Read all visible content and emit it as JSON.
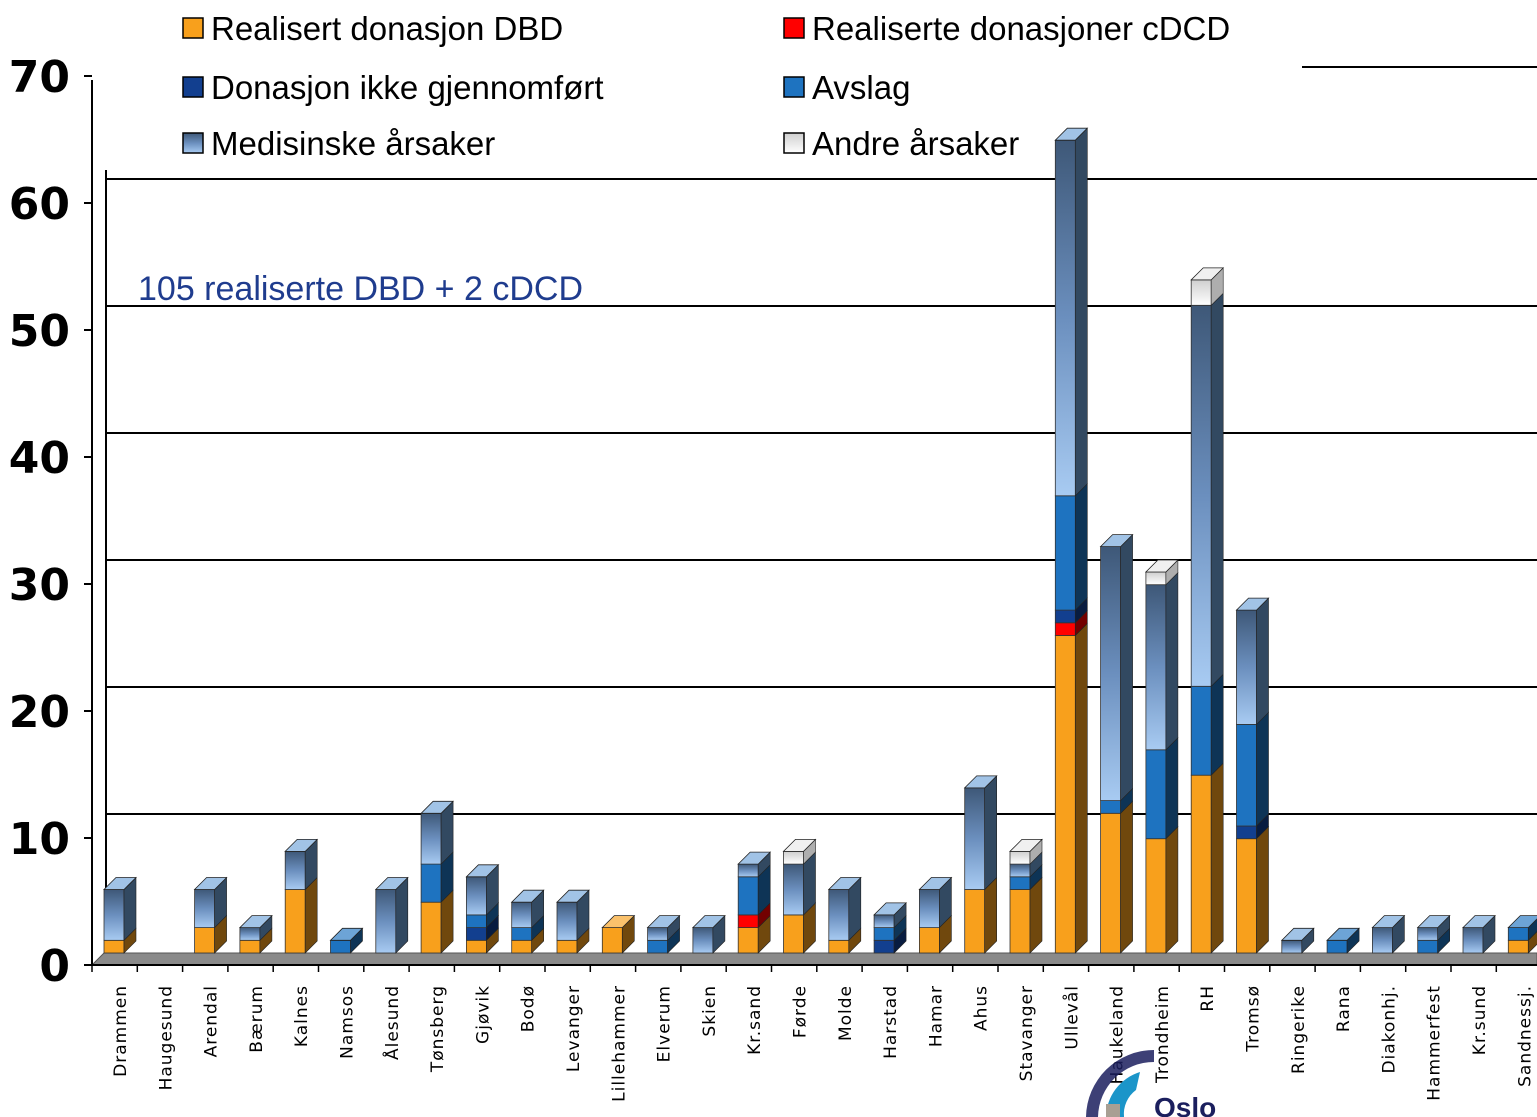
{
  "chart_data": {
    "type": "bar",
    "stacked": true,
    "three_d": true,
    "title": "",
    "xlabel": "",
    "ylabel": "",
    "ylim": [
      0,
      70
    ],
    "yticks": [
      "0",
      "10",
      "20",
      "30",
      "40",
      "50",
      "60",
      "70"
    ],
    "grid": true,
    "legend_position": "top",
    "categories": [
      "Drammen",
      "Haugesund",
      "Arendal",
      "Bærum",
      "Kalnes",
      "Namsos",
      "Ålesund",
      "Tønsberg",
      "Gjøvik",
      "Bodø",
      "Levanger",
      "Lillehammer",
      "Elverum",
      "Skien",
      "Kr.sand",
      "Førde",
      "Molde",
      "Harstad",
      "Hamar",
      "Ahus",
      "Stavanger",
      "Ullevål",
      "Haukeland",
      "Trondheim",
      "RH",
      "Tromsø",
      "Ringerike",
      "Rana",
      "Diakonhj.",
      "Hammerfest",
      "Kr.sund",
      "Sandnessj."
    ],
    "series": [
      {
        "name": "Realisert donasjon DBD",
        "color": "#f8a01c",
        "values": [
          1,
          0,
          2,
          1,
          5,
          0,
          0,
          4,
          1,
          1,
          1,
          2,
          0,
          0,
          2,
          3,
          1,
          0,
          2,
          5,
          5,
          25,
          11,
          9,
          14,
          9,
          0,
          0,
          0,
          0,
          0,
          1
        ]
      },
      {
        "name": "Realiserte donasjoner cDCD",
        "color": "#ff0000",
        "values": [
          0,
          0,
          0,
          0,
          0,
          0,
          0,
          0,
          0,
          0,
          0,
          0,
          0,
          0,
          1,
          0,
          0,
          0,
          0,
          0,
          0,
          1,
          0,
          0,
          0,
          0,
          0,
          0,
          0,
          0,
          0,
          0
        ]
      },
      {
        "name": "Donasjon ikke gjennomført",
        "color": "#123f8f",
        "values": [
          0,
          0,
          0,
          0,
          0,
          0,
          0,
          0,
          1,
          0,
          0,
          0,
          0,
          0,
          0,
          0,
          0,
          1,
          0,
          0,
          0,
          1,
          0,
          0,
          0,
          1,
          0,
          0,
          0,
          0,
          0,
          0
        ]
      },
      {
        "name": "Avslag",
        "color": "#1e73c0",
        "values": [
          0,
          0,
          0,
          0,
          0,
          1,
          0,
          3,
          1,
          1,
          0,
          0,
          1,
          0,
          3,
          0,
          0,
          1,
          0,
          0,
          1,
          9,
          1,
          7,
          7,
          8,
          0,
          1,
          0,
          1,
          0,
          1
        ]
      },
      {
        "name": "Medisinske årsaker",
        "color": "#6fa2d8",
        "values": [
          4,
          0,
          3,
          1,
          3,
          0,
          5,
          4,
          3,
          2,
          3,
          0,
          1,
          2,
          1,
          4,
          4,
          1,
          3,
          8,
          1,
          28,
          20,
          13,
          30,
          9,
          1,
          0,
          2,
          1,
          2,
          0
        ]
      },
      {
        "name": "Andre årsaker",
        "color": "#e8e8e8",
        "values": [
          0,
          0,
          0,
          0,
          0,
          0,
          0,
          0,
          0,
          0,
          0,
          0,
          0,
          0,
          0,
          1,
          0,
          0,
          0,
          0,
          1,
          0,
          0,
          1,
          2,
          0,
          0,
          0,
          0,
          0,
          0,
          0
        ]
      }
    ],
    "annotations": [
      {
        "text": "105 realiserte DBD + 2 cDCD",
        "color": "#1f3c8e"
      }
    ]
  },
  "logo": {
    "text": "Oslo"
  }
}
